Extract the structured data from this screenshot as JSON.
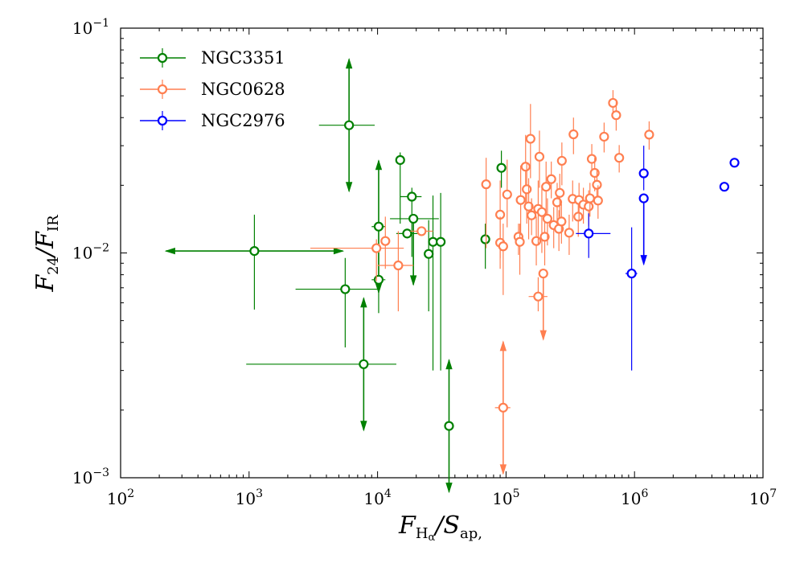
{
  "chart_data": {
    "type": "scatter",
    "xscale": "log",
    "yscale": "log",
    "xlim": [
      100,
      10000000
    ],
    "ylim": [
      0.001,
      0.1
    ],
    "xlabel": {
      "base": "F",
      "sub": "H",
      "subsub": "α",
      "rest": "/S",
      "rest_sub": "ap,"
    },
    "ylabel": {
      "base": "F",
      "sub": "24",
      "rest": "/F",
      "rest_sub": "IR"
    },
    "x_ticks": [
      {
        "value": 100,
        "base": "10",
        "exp": "2"
      },
      {
        "value": 1000,
        "base": "10",
        "exp": "3"
      },
      {
        "value": 10000,
        "base": "10",
        "exp": "4"
      },
      {
        "value": 100000,
        "base": "10",
        "exp": "5"
      },
      {
        "value": 1000000,
        "base": "10",
        "exp": "6"
      },
      {
        "value": 10000000,
        "base": "10",
        "exp": "7"
      }
    ],
    "y_ticks": [
      {
        "value": 0.001,
        "base": "10",
        "exp": "−3"
      },
      {
        "value": 0.01,
        "base": "10",
        "exp": "−2"
      },
      {
        "value": 0.1,
        "base": "10",
        "exp": "−1"
      }
    ],
    "legend_position": "top-left",
    "series": [
      {
        "name": "NGC3351",
        "color": "#008000",
        "points": [
          {
            "x": 1100,
            "y": 0.0102,
            "ylo": 0.0056,
            "yhi": 0.0148,
            "xarrows": "both"
          },
          {
            "x": 6000,
            "y": 0.037,
            "xlo": 3500,
            "xhi": 9500,
            "yarrows": "both"
          },
          {
            "x": 5600,
            "y": 0.0069,
            "xlo": 2300,
            "xhi": 10000,
            "ylo": 0.0038,
            "yhi": 0.0095
          },
          {
            "x": 7800,
            "y": 0.0032,
            "xlo": 950,
            "xhi": 14000,
            "yarrows": "both"
          },
          {
            "x": 10200,
            "y": 0.0131,
            "xlo": 9000,
            "xhi": 11500,
            "yarrows": "both"
          },
          {
            "x": 10200,
            "y": 0.0076,
            "xlo": 9000,
            "xhi": 11500,
            "ylo": 0.0054,
            "yhi": 0.01
          },
          {
            "x": 15000,
            "y": 0.0259,
            "ylo": 0.0135,
            "yhi": 0.028
          },
          {
            "x": 17000,
            "y": 0.0122,
            "xlo": 14000,
            "xhi": 21000
          },
          {
            "x": 18500,
            "y": 0.0178,
            "xlo": 15000,
            "xhi": 22000,
            "ylo": 0.0096,
            "yhi": 0.0195
          },
          {
            "x": 19000,
            "y": 0.0142,
            "xlo": 12500,
            "xhi": 30000,
            "yarrows": "down"
          },
          {
            "x": 25000,
            "y": 0.0099,
            "ylo": 0.0055,
            "yhi": 0.014
          },
          {
            "x": 27000,
            "y": 0.0112,
            "ylo": 0.003,
            "yhi": 0.018
          },
          {
            "x": 31000,
            "y": 0.0112,
            "ylo": 0.003,
            "yhi": 0.0185
          },
          {
            "x": 36000,
            "y": 0.0017,
            "yarrows": "both"
          },
          {
            "x": 69000,
            "y": 0.0115,
            "ylo": 0.0085,
            "yhi": 0.0135
          },
          {
            "x": 92000,
            "y": 0.0239,
            "ylo": 0.0195,
            "yhi": 0.0285
          }
        ]
      },
      {
        "name": "NGC0628",
        "color": "#FF7F50",
        "points": [
          {
            "x": 9800,
            "y": 0.0105,
            "xlo": 3000,
            "xhi": 16000,
            "ylo": 0.0075,
            "yhi": 0.0115
          },
          {
            "x": 11500,
            "y": 0.0113,
            "ylo": 0.0085,
            "yhi": 0.0145
          },
          {
            "x": 14500,
            "y": 0.0088,
            "xlo": 10000,
            "xhi": 19000,
            "ylo": 0.0055,
            "yhi": 0.0125
          },
          {
            "x": 22000,
            "y": 0.0125,
            "xlo": 18000,
            "xhi": 27000
          },
          {
            "x": 70000,
            "y": 0.0202,
            "ylo": 0.0105,
            "yhi": 0.0265
          },
          {
            "x": 90000,
            "y": 0.0148,
            "ylo": 0.0095,
            "yhi": 0.021
          },
          {
            "x": 90000,
            "y": 0.0111,
            "ylo": 0.0085,
            "yhi": 0.0145
          },
          {
            "x": 95000,
            "y": 0.0107,
            "ylo": 0.0065,
            "yhi": 0.0135
          },
          {
            "x": 95000,
            "y": 0.00205,
            "xlo": 82000,
            "xhi": 108000,
            "yarrows": "both"
          },
          {
            "x": 102000,
            "y": 0.0182,
            "ylo": 0.013,
            "yhi": 0.026
          },
          {
            "x": 125000,
            "y": 0.0118,
            "ylo": 0.0098,
            "yhi": 0.0135
          },
          {
            "x": 128000,
            "y": 0.0112,
            "ylo": 0.008,
            "yhi": 0.0135
          },
          {
            "x": 130000,
            "y": 0.0172,
            "ylo": 0.012,
            "yhi": 0.0245
          },
          {
            "x": 142000,
            "y": 0.0242,
            "ylo": 0.016,
            "yhi": 0.0335
          },
          {
            "x": 145000,
            "y": 0.0192,
            "ylo": 0.0135,
            "yhi": 0.025
          },
          {
            "x": 150000,
            "y": 0.0161,
            "ylo": 0.0115,
            "yhi": 0.0215
          },
          {
            "x": 155000,
            "y": 0.0322,
            "ylo": 0.0215,
            "yhi": 0.046
          },
          {
            "x": 158000,
            "y": 0.0147,
            "ylo": 0.012,
            "yhi": 0.0175
          },
          {
            "x": 172000,
            "y": 0.0113,
            "ylo": 0.0088,
            "yhi": 0.0145
          },
          {
            "x": 178000,
            "y": 0.0064,
            "xlo": 150000,
            "xhi": 210000,
            "ylo": 0.0055,
            "yhi": 0.0078
          },
          {
            "x": 178000,
            "y": 0.0157,
            "ylo": 0.011,
            "yhi": 0.021
          },
          {
            "x": 182000,
            "y": 0.0268,
            "ylo": 0.0195,
            "yhi": 0.035
          },
          {
            "x": 190000,
            "y": 0.0152,
            "ylo": 0.01,
            "yhi": 0.02
          },
          {
            "x": 195000,
            "y": 0.0081,
            "yarrows": "down"
          },
          {
            "x": 200000,
            "y": 0.0118,
            "ylo": 0.0088,
            "yhi": 0.0148
          },
          {
            "x": 205000,
            "y": 0.0197,
            "ylo": 0.0145,
            "yhi": 0.0255
          },
          {
            "x": 210000,
            "y": 0.0142,
            "ylo": 0.0108,
            "yhi": 0.0175
          },
          {
            "x": 225000,
            "y": 0.0213,
            "ylo": 0.0175,
            "yhi": 0.0255
          },
          {
            "x": 235000,
            "y": 0.0133,
            "ylo": 0.0105,
            "yhi": 0.016
          },
          {
            "x": 250000,
            "y": 0.0168,
            "ylo": 0.0135,
            "yhi": 0.0205
          },
          {
            "x": 258000,
            "y": 0.0128,
            "ylo": 0.0102,
            "yhi": 0.0155
          },
          {
            "x": 262000,
            "y": 0.0185,
            "ylo": 0.0145,
            "yhi": 0.0225
          },
          {
            "x": 270000,
            "y": 0.0138,
            "ylo": 0.011,
            "yhi": 0.0165
          },
          {
            "x": 272000,
            "y": 0.0257,
            "ylo": 0.02,
            "yhi": 0.031
          },
          {
            "x": 310000,
            "y": 0.0123,
            "ylo": 0.0098,
            "yhi": 0.0148
          },
          {
            "x": 330000,
            "y": 0.0174,
            "ylo": 0.0138,
            "yhi": 0.021
          },
          {
            "x": 335000,
            "y": 0.0337,
            "ylo": 0.0275,
            "yhi": 0.04
          },
          {
            "x": 365000,
            "y": 0.0145,
            "ylo": 0.0118,
            "yhi": 0.0172
          },
          {
            "x": 370000,
            "y": 0.0172,
            "ylo": 0.014,
            "yhi": 0.0205
          },
          {
            "x": 400000,
            "y": 0.0164,
            "ylo": 0.0135,
            "yhi": 0.0195
          },
          {
            "x": 440000,
            "y": 0.0161,
            "ylo": 0.0132,
            "yhi": 0.019
          },
          {
            "x": 450000,
            "y": 0.0175,
            "ylo": 0.0145,
            "yhi": 0.0205
          },
          {
            "x": 465000,
            "y": 0.0262,
            "ylo": 0.022,
            "yhi": 0.0305
          },
          {
            "x": 490000,
            "y": 0.0227,
            "ylo": 0.0188,
            "yhi": 0.0265
          },
          {
            "x": 510000,
            "y": 0.0201,
            "ylo": 0.0168,
            "yhi": 0.0235
          },
          {
            "x": 520000,
            "y": 0.0171,
            "ylo": 0.0142,
            "yhi": 0.02
          },
          {
            "x": 580000,
            "y": 0.0329,
            "ylo": 0.028,
            "yhi": 0.038
          },
          {
            "x": 680000,
            "y": 0.0465,
            "ylo": 0.04,
            "yhi": 0.053
          },
          {
            "x": 720000,
            "y": 0.041,
            "ylo": 0.035,
            "yhi": 0.047
          },
          {
            "x": 760000,
            "y": 0.0265,
            "ylo": 0.0228,
            "yhi": 0.0302
          },
          {
            "x": 1300000,
            "y": 0.0336,
            "ylo": 0.0288,
            "yhi": 0.0385
          }
        ]
      },
      {
        "name": "NGC2976",
        "color": "#0000FF",
        "points": [
          {
            "x": 440000,
            "y": 0.0122,
            "xlo": 350000,
            "xhi": 650000,
            "ylo": 0.0095,
            "yhi": 0.015
          },
          {
            "x": 950000,
            "y": 0.0081,
            "xlo": 850000,
            "xhi": 1050000,
            "ylo": 0.003,
            "yhi": 0.013
          },
          {
            "x": 1180000,
            "y": 0.0175,
            "yarrows": "down"
          },
          {
            "x": 1180000,
            "y": 0.0226,
            "ylo": 0.019,
            "yhi": 0.03
          },
          {
            "x": 5000000,
            "y": 0.0197
          },
          {
            "x": 6000000,
            "y": 0.0252
          }
        ]
      }
    ]
  }
}
